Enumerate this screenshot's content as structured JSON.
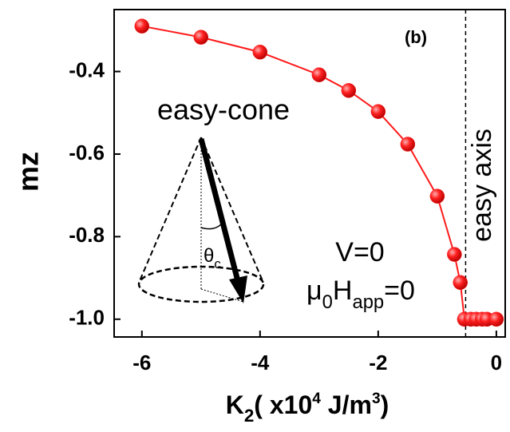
{
  "chart_data": {
    "type": "line",
    "panel_label": "(b)",
    "ylabel": "mz",
    "xlabel": [
      "K",
      "2",
      "( x10",
      "4",
      " J/m",
      "3",
      ")"
    ],
    "annotations": {
      "cone": "easy-cone",
      "axis": "easy axis",
      "voltage": "V=0",
      "field": [
        "μ",
        "0",
        "H",
        "app",
        "=0"
      ],
      "angle": [
        "θ",
        "c"
      ]
    },
    "x": [
      -6,
      -5,
      -4,
      -3,
      -2.5,
      -2,
      -1.5,
      -1,
      -0.71,
      -0.61,
      -0.54,
      -0.43,
      -0.34,
      -0.24,
      -0.16,
      0
    ],
    "series": [
      {
        "color": "#ff1a1a",
        "values": [
          -0.29,
          -0.317,
          -0.353,
          -0.408,
          -0.446,
          -0.497,
          -0.576,
          -0.702,
          -0.843,
          -0.911,
          -1.0,
          -1.0,
          -1.0,
          -1.0,
          -1.0,
          -1.0
        ]
      }
    ],
    "boundary_x": -0.52,
    "xlim": [
      -6.47,
      0.15
    ],
    "ylim": [
      -1.043,
      -0.25
    ],
    "xticks": [
      -6,
      -4,
      -2,
      0
    ],
    "yticks": [
      {
        "value": -0.4,
        "label": "-0.4"
      },
      {
        "value": -0.6,
        "label": "-0.6"
      },
      {
        "value": -0.8,
        "label": "-0.8"
      },
      {
        "value": -1.0,
        "label": "-1.0"
      }
    ]
  }
}
